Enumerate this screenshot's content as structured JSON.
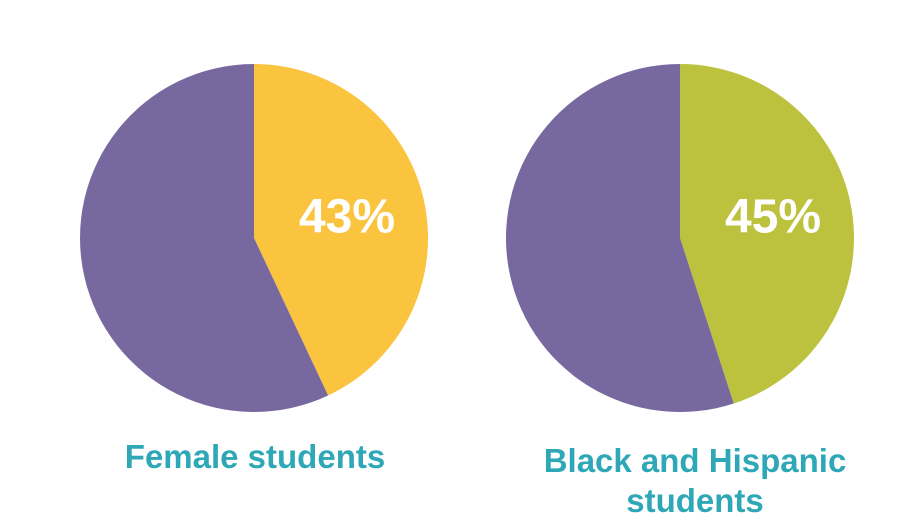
{
  "chart_data": [
    {
      "type": "pie",
      "caption": "Female students",
      "slices": [
        {
          "value": 43,
          "label": "43%",
          "color": "#fbc43e"
        },
        {
          "value": 57,
          "label": "",
          "color": "#7868a0"
        }
      ]
    },
    {
      "type": "pie",
      "caption": "Black and Hispanic students",
      "slices": [
        {
          "value": 45,
          "label": "45%",
          "color": "#bcc23e"
        },
        {
          "value": 55,
          "label": "",
          "color": "#7868a0"
        }
      ]
    }
  ],
  "caption_color": "#2ea8b7"
}
